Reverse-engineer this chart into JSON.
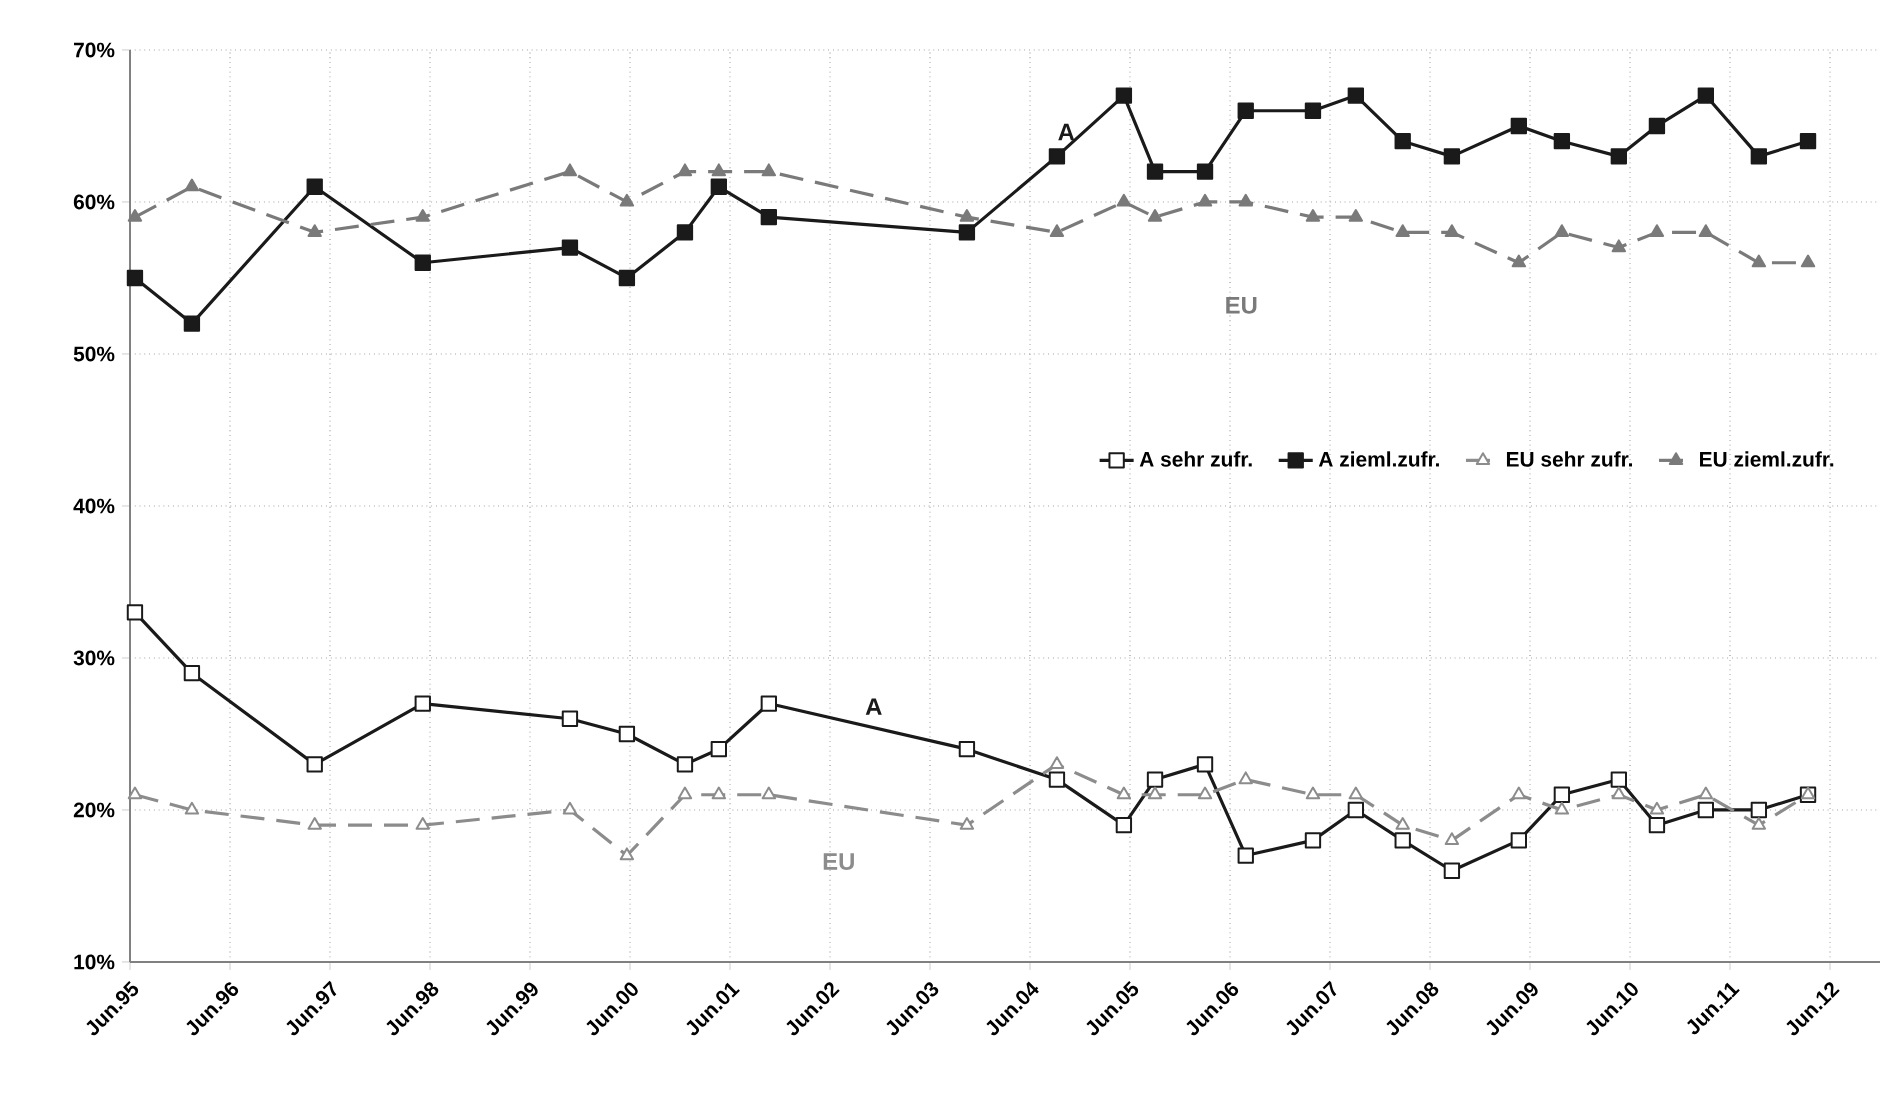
{
  "chart_data": {
    "type": "line",
    "x": [
      "1995-06-19",
      "1996-01-14",
      "1997-04-06",
      "1998-05-05",
      "1999-10-25",
      "2000-05-20",
      "2000-12-19",
      "2001-04-21",
      "2001-10-21",
      "2003-10-14",
      "2004-09-08",
      "2005-05-09",
      "2005-09-01",
      "2006-03-01",
      "2006-07-28",
      "2007-03-30",
      "2007-09-04",
      "2008-02-23",
      "2008-08-20",
      "2009-04-21",
      "2009-09-26",
      "2010-04-21",
      "2010-09-08",
      "2011-03-04",
      "2011-09-15",
      "2012-03-12"
    ],
    "series": [
      {
        "name": "A sehr zufr.",
        "color": "#1a1a1a",
        "marker": "square",
        "line_style": "solid",
        "values": [
          33,
          29,
          23,
          27,
          26,
          25,
          23,
          24,
          27,
          24,
          22,
          19,
          22,
          23,
          17,
          18,
          20,
          18,
          16,
          18,
          21,
          22,
          19,
          20,
          20,
          21
        ]
      },
      {
        "name": "A zieml.zufr.",
        "color": "#1a1a1a",
        "marker": "square",
        "line_style": "solid",
        "values": [
          55,
          52,
          61,
          56,
          57,
          55,
          58,
          61,
          59,
          58,
          63,
          67,
          62,
          62,
          66,
          66,
          67,
          64,
          63,
          65,
          64,
          63,
          65,
          67,
          63,
          64
        ]
      },
      {
        "name": "EU sehr zufr.",
        "color": "#8c8c8c",
        "marker": "triangle",
        "line_style": "dashed",
        "values": [
          21,
          20,
          19,
          19,
          20,
          17,
          21,
          21,
          21,
          19,
          23,
          21,
          21,
          21,
          22,
          21,
          21,
          19,
          18,
          21,
          20,
          21,
          20,
          21,
          19,
          21
        ]
      },
      {
        "name": "EU zieml.zufr.",
        "color": "#7a7a7a",
        "marker": "triangle",
        "line_style": "dashed",
        "values": [
          59,
          61,
          58,
          59,
          62,
          60,
          62,
          62,
          62,
          59,
          58,
          60,
          59,
          60,
          60,
          59,
          59,
          58,
          58,
          56,
          58,
          57,
          58,
          58,
          56,
          56
        ]
      }
    ],
    "xlim": [
      "1995-06-01",
      "2012-12-01"
    ],
    "xticks": [
      {
        "value": "1995-06",
        "label": "Jun.95"
      },
      {
        "value": "1996-06",
        "label": "Jun.96"
      },
      {
        "value": "1997-06",
        "label": "Jun.97"
      },
      {
        "value": "1998-06",
        "label": "Jun.98"
      },
      {
        "value": "1999-06",
        "label": "Jun.99"
      },
      {
        "value": "2000-06",
        "label": "Jun.00"
      },
      {
        "value": "2001-06",
        "label": "Jun.01"
      },
      {
        "value": "2002-06",
        "label": "Jun.02"
      },
      {
        "value": "2003-06",
        "label": "Jun.03"
      },
      {
        "value": "2004-06",
        "label": "Jun.04"
      },
      {
        "value": "2005-06",
        "label": "Jun.05"
      },
      {
        "value": "2006-06",
        "label": "Jun.06"
      },
      {
        "value": "2007-06",
        "label": "Jun.07"
      },
      {
        "value": "2008-06",
        "label": "Jun.08"
      },
      {
        "value": "2009-06",
        "label": "Jun.09"
      },
      {
        "value": "2010-06",
        "label": "Jun.10"
      },
      {
        "value": "2011-06",
        "label": "Jun.11"
      },
      {
        "value": "2012-06",
        "label": "Jun.12"
      }
    ],
    "ylim": [
      10,
      70
    ],
    "yticks": [
      {
        "value": 10,
        "label": "10%"
      },
      {
        "value": 20,
        "label": "20%"
      },
      {
        "value": 30,
        "label": "30%"
      },
      {
        "value": 40,
        "label": "40%"
      },
      {
        "value": 50,
        "label": "50%"
      },
      {
        "value": 60,
        "label": "60%"
      },
      {
        "value": 70,
        "label": "70%"
      }
    ],
    "grid": true,
    "legend": "right",
    "annotations": [
      "A",
      "EU",
      "A",
      "EU"
    ]
  }
}
